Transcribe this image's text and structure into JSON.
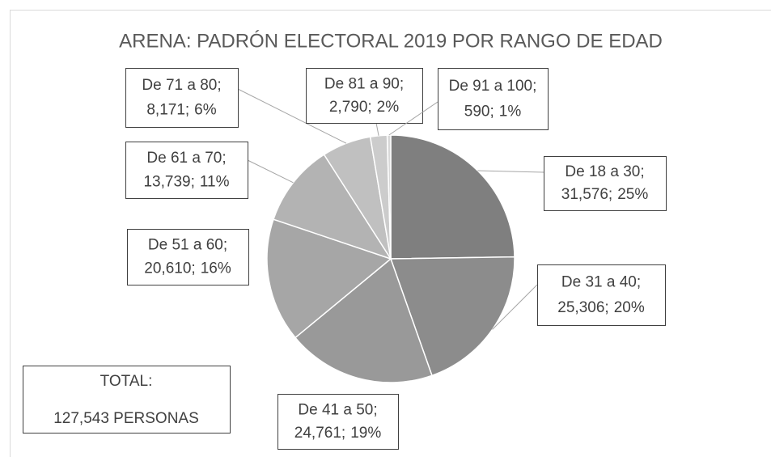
{
  "chart_data": {
    "type": "pie",
    "title": "ARENA: PADRÓN ELECTORAL 2019 POR RANGO DE EDAD",
    "categories": [
      "De 18 a 30",
      "De 31 a 40",
      "De 41 a 50",
      "De 51 a 60",
      "De 61 a 70",
      "De 71 a 80",
      "De 81 a 90",
      "De 91 a 100"
    ],
    "separator": ";",
    "values": [
      31576,
      25306,
      24761,
      20610,
      13739,
      8171,
      2790,
      590
    ],
    "value_labels": [
      "31,576",
      "25,306",
      "24,761",
      "20,610",
      "13,739",
      "8,171",
      "2,790",
      "590"
    ],
    "percents": [
      25,
      20,
      19,
      16,
      11,
      6,
      2,
      1
    ],
    "percent_labels": [
      "25%",
      "20%",
      "19%",
      "16%",
      "11%",
      "6%",
      "2%",
      "1%"
    ],
    "colors": [
      "#7f7f7f",
      "#8c8c8c",
      "#999999",
      "#a6a6a6",
      "#b3b3b3",
      "#c0c0c0",
      "#cccccc",
      "#d9d9d9"
    ],
    "total": {
      "label": "TOTAL:",
      "text": "127,543 PERSONAS"
    }
  }
}
